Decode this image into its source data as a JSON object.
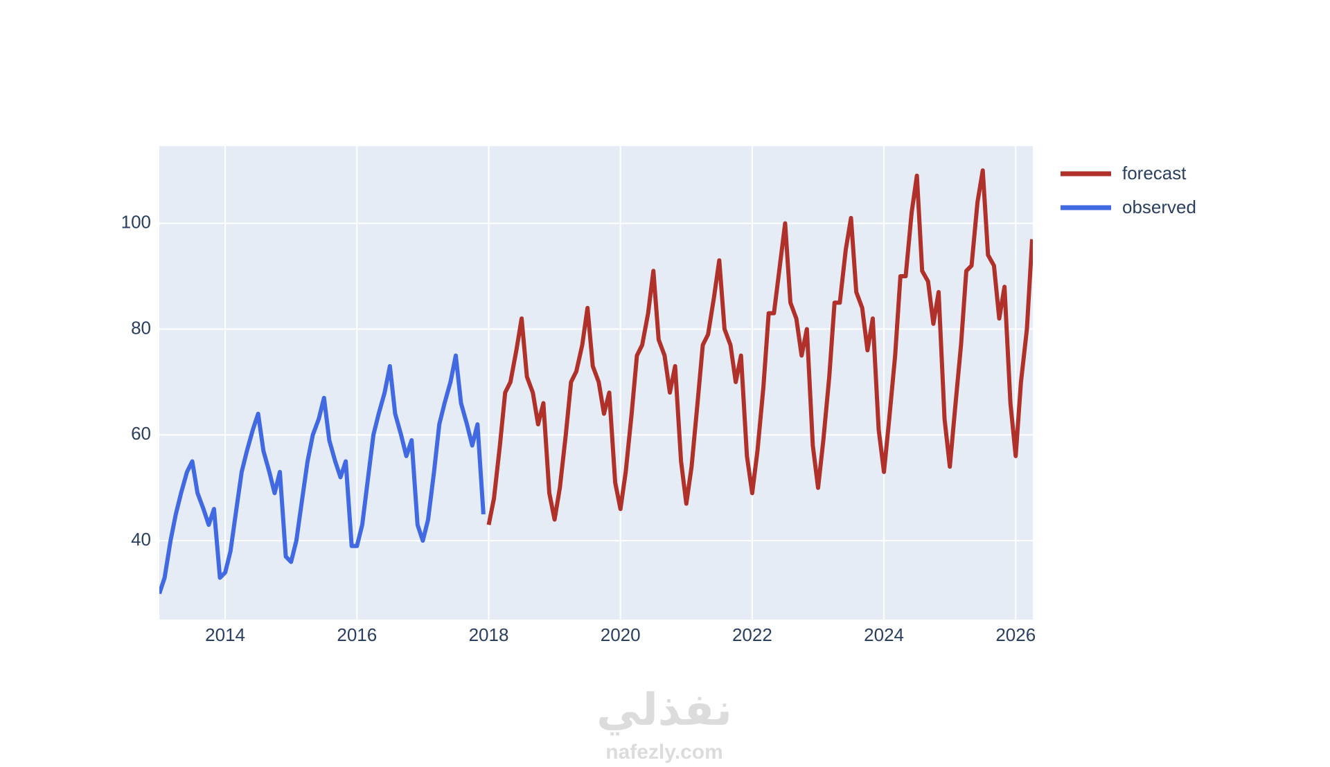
{
  "chart_data": {
    "type": "line",
    "series": [
      {
        "name": "forecast",
        "color": "#b0302a",
        "x": [
          2018.0,
          2018.08,
          2018.17,
          2018.25,
          2018.33,
          2018.42,
          2018.5,
          2018.58,
          2018.67,
          2018.75,
          2018.83,
          2018.92,
          2019.0,
          2019.08,
          2019.17,
          2019.25,
          2019.33,
          2019.42,
          2019.5,
          2019.58,
          2019.67,
          2019.75,
          2019.83,
          2019.92,
          2020.0,
          2020.08,
          2020.17,
          2020.25,
          2020.33,
          2020.42,
          2020.5,
          2020.58,
          2020.67,
          2020.75,
          2020.83,
          2020.92,
          2021.0,
          2021.08,
          2021.17,
          2021.25,
          2021.33,
          2021.42,
          2021.5,
          2021.58,
          2021.67,
          2021.75,
          2021.83,
          2021.92,
          2022.0,
          2022.08,
          2022.17,
          2022.25,
          2022.33,
          2022.42,
          2022.5,
          2022.58,
          2022.67,
          2022.75,
          2022.83,
          2022.92,
          2023.0,
          2023.08,
          2023.17,
          2023.25,
          2023.33,
          2023.42,
          2023.5,
          2023.58,
          2023.67,
          2023.75,
          2023.83,
          2023.92,
          2024.0,
          2024.08,
          2024.17,
          2024.25,
          2024.33,
          2024.42,
          2024.5,
          2024.58,
          2024.67,
          2024.75,
          2024.83,
          2024.92,
          2025.0,
          2025.08,
          2025.17,
          2025.25,
          2025.33,
          2025.42,
          2025.5,
          2025.58,
          2025.67,
          2025.75,
          2025.83,
          2025.92,
          2026.0,
          2026.08,
          2026.17,
          2026.25
        ],
        "values": [
          43,
          48,
          58,
          68,
          70,
          76,
          82,
          71,
          68,
          62,
          66,
          49,
          44,
          50,
          60,
          70,
          72,
          77,
          84,
          73,
          70,
          64,
          68,
          51,
          46,
          53,
          64,
          75,
          77,
          83,
          91,
          78,
          75,
          68,
          73,
          55,
          47,
          54,
          66,
          77,
          79,
          86,
          93,
          80,
          77,
          70,
          75,
          56,
          49,
          57,
          69,
          83,
          83,
          92,
          100,
          85,
          82,
          75,
          80,
          58,
          50,
          59,
          71,
          85,
          85,
          95,
          101,
          87,
          84,
          76,
          82,
          61,
          53,
          63,
          75,
          90,
          90,
          102,
          109,
          91,
          89,
          81,
          87,
          63,
          54,
          65,
          77,
          91,
          92,
          104,
          110,
          94,
          92,
          82,
          88,
          66,
          56,
          70,
          80,
          97
        ]
      },
      {
        "name": "observed",
        "color": "#4169e1",
        "x": [
          2013.0,
          2013.08,
          2013.17,
          2013.25,
          2013.33,
          2013.42,
          2013.5,
          2013.58,
          2013.67,
          2013.75,
          2013.83,
          2013.92,
          2014.0,
          2014.08,
          2014.17,
          2014.25,
          2014.33,
          2014.42,
          2014.5,
          2014.58,
          2014.67,
          2014.75,
          2014.83,
          2014.92,
          2015.0,
          2015.08,
          2015.17,
          2015.25,
          2015.33,
          2015.42,
          2015.5,
          2015.58,
          2015.67,
          2015.75,
          2015.83,
          2015.92,
          2016.0,
          2016.08,
          2016.17,
          2016.25,
          2016.33,
          2016.42,
          2016.5,
          2016.58,
          2016.67,
          2016.75,
          2016.83,
          2016.92,
          2017.0,
          2017.08,
          2017.17,
          2017.25,
          2017.33,
          2017.42,
          2017.5,
          2017.58,
          2017.67,
          2017.75,
          2017.83,
          2017.92
        ],
        "values": [
          30,
          33,
          40,
          45,
          49,
          53,
          55,
          49,
          46,
          43,
          46,
          33,
          34,
          38,
          46,
          53,
          57,
          61,
          64,
          57,
          53,
          49,
          53,
          37,
          36,
          40,
          48,
          55,
          60,
          63,
          67,
          59,
          55,
          52,
          55,
          39,
          39,
          43,
          52,
          60,
          64,
          68,
          73,
          64,
          60,
          56,
          59,
          43,
          40,
          44,
          53,
          62,
          66,
          70,
          75,
          66,
          62,
          58,
          62,
          45
        ]
      }
    ],
    "xlim": [
      2013,
      2026.26
    ],
    "xticks": [
      2014,
      2016,
      2018,
      2020,
      2022,
      2024,
      2026
    ],
    "ylim": [
      25.1,
      114.6
    ],
    "yticks": [
      40,
      60,
      80,
      100
    ],
    "grid": true,
    "legend": "right"
  },
  "watermark": {
    "arabic": "نفذلي",
    "latin": "nafezly.com"
  }
}
